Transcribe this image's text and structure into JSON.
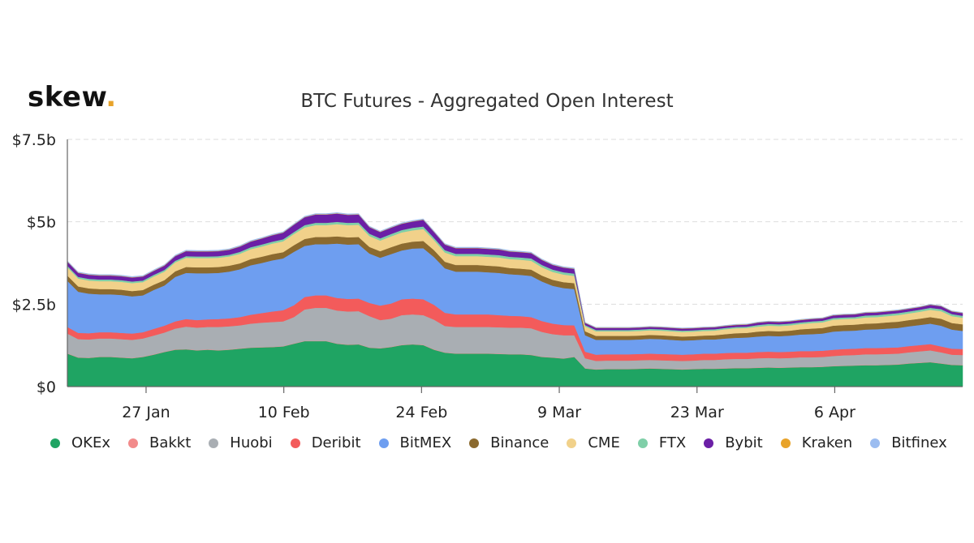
{
  "logo": {
    "text": "skew",
    "dot": "."
  },
  "chart_data": {
    "type": "area",
    "stacked": true,
    "title": "BTC Futures - Aggregated Open Interest",
    "xlabel": "",
    "ylabel": "",
    "ylim": [
      0,
      7.5
    ],
    "y_ticks": [
      0,
      2.5,
      5,
      7.5
    ],
    "y_tick_labels": [
      "$0",
      "$2.5b",
      "$5b",
      "$7.5b"
    ],
    "x_tick_labels": [
      "27 Jan",
      "10 Feb",
      "24 Feb",
      "9 Mar",
      "23 Mar",
      "6 Apr"
    ],
    "x_tick_days": [
      8,
      22,
      36,
      50,
      64,
      78
    ],
    "x_range_days": [
      0,
      91
    ],
    "x_start_date": "2020-01-19",
    "series": [
      {
        "name": "OKEx",
        "color": "#1fa463",
        "values": [
          1.0,
          0.88,
          0.87,
          0.9,
          0.9,
          0.88,
          0.86,
          0.9,
          0.97,
          1.05,
          1.12,
          1.13,
          1.1,
          1.12,
          1.1,
          1.12,
          1.15,
          1.18,
          1.19,
          1.2,
          1.22,
          1.3,
          1.38,
          1.38,
          1.38,
          1.3,
          1.27,
          1.28,
          1.18,
          1.16,
          1.2,
          1.26,
          1.28,
          1.26,
          1.12,
          1.03,
          1.0,
          1.0,
          1.0,
          1.0,
          0.99,
          0.98,
          0.98,
          0.96,
          0.9,
          0.88,
          0.85,
          0.9,
          0.55,
          0.52,
          0.53,
          0.53,
          0.53,
          0.54,
          0.55,
          0.54,
          0.53,
          0.52,
          0.53,
          0.54,
          0.54,
          0.55,
          0.56,
          0.56,
          0.57,
          0.58,
          0.57,
          0.58,
          0.59,
          0.59,
          0.6,
          0.62,
          0.63,
          0.64,
          0.65,
          0.65,
          0.66,
          0.67,
          0.7,
          0.72,
          0.74,
          0.7,
          0.66,
          0.65
        ]
      },
      {
        "name": "Bakkt",
        "color": "#f28b8b",
        "values": [
          0.01,
          0.01,
          0.01,
          0.01,
          0.01,
          0.01,
          0.01,
          0.01,
          0.01,
          0.01,
          0.01,
          0.01,
          0.01,
          0.01,
          0.01,
          0.01,
          0.01,
          0.01,
          0.01,
          0.01,
          0.01,
          0.01,
          0.01,
          0.01,
          0.01,
          0.01,
          0.01,
          0.01,
          0.01,
          0.01,
          0.01,
          0.01,
          0.01,
          0.01,
          0.01,
          0.01,
          0.01,
          0.01,
          0.01,
          0.01,
          0.01,
          0.01,
          0.01,
          0.01,
          0.01,
          0.01,
          0.01,
          0.01,
          0.01,
          0.01,
          0.01,
          0.01,
          0.01,
          0.01,
          0.01,
          0.01,
          0.01,
          0.01,
          0.01,
          0.01,
          0.01,
          0.01,
          0.01,
          0.01,
          0.01,
          0.01,
          0.01,
          0.01,
          0.01,
          0.01,
          0.01,
          0.01,
          0.01,
          0.01,
          0.01,
          0.01,
          0.01,
          0.01,
          0.01,
          0.01,
          0.01,
          0.01,
          0.01,
          0.01
        ]
      },
      {
        "name": "Huobi",
        "color": "#a9aeb3",
        "values": [
          0.6,
          0.55,
          0.55,
          0.55,
          0.55,
          0.55,
          0.55,
          0.55,
          0.57,
          0.58,
          0.63,
          0.68,
          0.68,
          0.68,
          0.7,
          0.7,
          0.7,
          0.72,
          0.74,
          0.75,
          0.75,
          0.8,
          0.95,
          1.0,
          1.0,
          1.0,
          1.0,
          1.0,
          0.95,
          0.85,
          0.85,
          0.9,
          0.9,
          0.9,
          0.9,
          0.8,
          0.8,
          0.8,
          0.8,
          0.8,
          0.8,
          0.8,
          0.8,
          0.8,
          0.75,
          0.7,
          0.7,
          0.65,
          0.3,
          0.25,
          0.25,
          0.25,
          0.25,
          0.25,
          0.25,
          0.25,
          0.25,
          0.25,
          0.25,
          0.26,
          0.26,
          0.27,
          0.27,
          0.27,
          0.28,
          0.28,
          0.28,
          0.28,
          0.29,
          0.29,
          0.29,
          0.3,
          0.31,
          0.31,
          0.32,
          0.32,
          0.32,
          0.32,
          0.33,
          0.34,
          0.35,
          0.33,
          0.3,
          0.3
        ]
      },
      {
        "name": "Deribit",
        "color": "#f35b5b",
        "values": [
          0.2,
          0.19,
          0.19,
          0.19,
          0.19,
          0.19,
          0.19,
          0.19,
          0.2,
          0.21,
          0.22,
          0.23,
          0.23,
          0.23,
          0.24,
          0.24,
          0.25,
          0.27,
          0.29,
          0.32,
          0.34,
          0.36,
          0.38,
          0.38,
          0.38,
          0.38,
          0.38,
          0.38,
          0.4,
          0.44,
          0.46,
          0.48,
          0.48,
          0.48,
          0.45,
          0.4,
          0.38,
          0.38,
          0.38,
          0.38,
          0.37,
          0.36,
          0.35,
          0.34,
          0.33,
          0.32,
          0.31,
          0.3,
          0.2,
          0.19,
          0.19,
          0.19,
          0.19,
          0.19,
          0.19,
          0.19,
          0.19,
          0.19,
          0.19,
          0.19,
          0.19,
          0.19,
          0.19,
          0.19,
          0.19,
          0.19,
          0.19,
          0.19,
          0.19,
          0.19,
          0.19,
          0.19,
          0.19,
          0.19,
          0.19,
          0.19,
          0.19,
          0.19,
          0.19,
          0.19,
          0.19,
          0.18,
          0.18,
          0.18
        ]
      },
      {
        "name": "BitMEX",
        "color": "#6e9ef0",
        "values": [
          1.4,
          1.25,
          1.2,
          1.15,
          1.15,
          1.15,
          1.13,
          1.12,
          1.18,
          1.22,
          1.35,
          1.4,
          1.42,
          1.4,
          1.4,
          1.42,
          1.45,
          1.5,
          1.52,
          1.55,
          1.57,
          1.62,
          1.55,
          1.55,
          1.55,
          1.65,
          1.65,
          1.65,
          1.5,
          1.45,
          1.5,
          1.48,
          1.52,
          1.55,
          1.45,
          1.35,
          1.3,
          1.3,
          1.3,
          1.28,
          1.28,
          1.26,
          1.25,
          1.25,
          1.2,
          1.15,
          1.12,
          1.1,
          0.5,
          0.45,
          0.44,
          0.44,
          0.44,
          0.44,
          0.45,
          0.45,
          0.44,
          0.43,
          0.43,
          0.43,
          0.43,
          0.44,
          0.45,
          0.46,
          0.47,
          0.48,
          0.48,
          0.49,
          0.5,
          0.51,
          0.52,
          0.55,
          0.55,
          0.55,
          0.56,
          0.57,
          0.58,
          0.59,
          0.6,
          0.61,
          0.62,
          0.63,
          0.58,
          0.55
        ]
      },
      {
        "name": "Binance",
        "color": "#8b6a2f",
        "values": [
          0.16,
          0.16,
          0.16,
          0.16,
          0.16,
          0.16,
          0.16,
          0.16,
          0.16,
          0.16,
          0.17,
          0.18,
          0.18,
          0.18,
          0.18,
          0.18,
          0.18,
          0.19,
          0.19,
          0.19,
          0.19,
          0.2,
          0.21,
          0.22,
          0.22,
          0.22,
          0.22,
          0.22,
          0.2,
          0.2,
          0.21,
          0.21,
          0.21,
          0.22,
          0.21,
          0.2,
          0.2,
          0.2,
          0.2,
          0.2,
          0.2,
          0.19,
          0.19,
          0.19,
          0.18,
          0.18,
          0.18,
          0.18,
          0.12,
          0.12,
          0.12,
          0.12,
          0.12,
          0.12,
          0.12,
          0.12,
          0.12,
          0.12,
          0.12,
          0.12,
          0.13,
          0.13,
          0.14,
          0.14,
          0.15,
          0.15,
          0.15,
          0.15,
          0.16,
          0.17,
          0.17,
          0.18,
          0.18,
          0.18,
          0.18,
          0.18,
          0.19,
          0.19,
          0.19,
          0.19,
          0.2,
          0.21,
          0.2,
          0.2
        ]
      },
      {
        "name": "CME",
        "color": "#f1d18a",
        "values": [
          0.25,
          0.24,
          0.24,
          0.24,
          0.24,
          0.24,
          0.24,
          0.24,
          0.25,
          0.26,
          0.27,
          0.28,
          0.28,
          0.28,
          0.28,
          0.28,
          0.29,
          0.3,
          0.31,
          0.32,
          0.33,
          0.34,
          0.35,
          0.36,
          0.36,
          0.37,
          0.37,
          0.37,
          0.33,
          0.32,
          0.33,
          0.34,
          0.34,
          0.36,
          0.3,
          0.28,
          0.27,
          0.27,
          0.27,
          0.27,
          0.27,
          0.27,
          0.27,
          0.27,
          0.25,
          0.24,
          0.23,
          0.22,
          0.15,
          0.14,
          0.14,
          0.14,
          0.14,
          0.14,
          0.14,
          0.14,
          0.14,
          0.14,
          0.14,
          0.14,
          0.14,
          0.15,
          0.15,
          0.15,
          0.15,
          0.16,
          0.16,
          0.16,
          0.16,
          0.17,
          0.17,
          0.18,
          0.18,
          0.18,
          0.19,
          0.19,
          0.19,
          0.2,
          0.2,
          0.21,
          0.22,
          0.23,
          0.21,
          0.2
        ]
      },
      {
        "name": "FTX",
        "color": "#7fcfa8",
        "values": [
          0.05,
          0.05,
          0.05,
          0.05,
          0.05,
          0.05,
          0.05,
          0.05,
          0.05,
          0.05,
          0.05,
          0.05,
          0.05,
          0.05,
          0.05,
          0.05,
          0.06,
          0.06,
          0.06,
          0.06,
          0.06,
          0.06,
          0.07,
          0.07,
          0.07,
          0.07,
          0.07,
          0.07,
          0.07,
          0.07,
          0.07,
          0.07,
          0.08,
          0.08,
          0.07,
          0.07,
          0.07,
          0.07,
          0.07,
          0.07,
          0.07,
          0.07,
          0.07,
          0.07,
          0.07,
          0.07,
          0.07,
          0.07,
          0.04,
          0.04,
          0.04,
          0.04,
          0.04,
          0.04,
          0.04,
          0.04,
          0.04,
          0.04,
          0.04,
          0.04,
          0.04,
          0.04,
          0.04,
          0.04,
          0.05,
          0.05,
          0.05,
          0.05,
          0.05,
          0.05,
          0.05,
          0.05,
          0.05,
          0.05,
          0.06,
          0.06,
          0.06,
          0.06,
          0.06,
          0.06,
          0.06,
          0.06,
          0.06,
          0.06
        ]
      },
      {
        "name": "Bybit",
        "color": "#6b1fa6",
        "values": [
          0.12,
          0.12,
          0.12,
          0.12,
          0.12,
          0.12,
          0.12,
          0.12,
          0.12,
          0.13,
          0.14,
          0.15,
          0.15,
          0.15,
          0.15,
          0.15,
          0.16,
          0.17,
          0.18,
          0.19,
          0.2,
          0.22,
          0.24,
          0.25,
          0.25,
          0.25,
          0.24,
          0.24,
          0.2,
          0.19,
          0.19,
          0.19,
          0.19,
          0.2,
          0.18,
          0.17,
          0.17,
          0.17,
          0.17,
          0.17,
          0.17,
          0.16,
          0.16,
          0.16,
          0.15,
          0.14,
          0.14,
          0.14,
          0.06,
          0.06,
          0.06,
          0.06,
          0.06,
          0.06,
          0.06,
          0.06,
          0.06,
          0.06,
          0.06,
          0.06,
          0.06,
          0.06,
          0.06,
          0.06,
          0.07,
          0.07,
          0.07,
          0.07,
          0.07,
          0.07,
          0.07,
          0.08,
          0.08,
          0.08,
          0.08,
          0.08,
          0.08,
          0.08,
          0.08,
          0.08,
          0.09,
          0.09,
          0.08,
          0.08
        ]
      },
      {
        "name": "Kraken",
        "color": "#e8a32a",
        "values": [
          0.01,
          0.01,
          0.01,
          0.01,
          0.01,
          0.01,
          0.01,
          0.01,
          0.01,
          0.01,
          0.01,
          0.01,
          0.01,
          0.01,
          0.01,
          0.01,
          0.01,
          0.01,
          0.01,
          0.01,
          0.01,
          0.01,
          0.01,
          0.01,
          0.01,
          0.01,
          0.01,
          0.01,
          0.01,
          0.01,
          0.01,
          0.01,
          0.01,
          0.01,
          0.01,
          0.01,
          0.01,
          0.01,
          0.01,
          0.01,
          0.01,
          0.01,
          0.01,
          0.01,
          0.01,
          0.01,
          0.01,
          0.01,
          0.01,
          0.01,
          0.01,
          0.01,
          0.01,
          0.01,
          0.01,
          0.01,
          0.01,
          0.01,
          0.01,
          0.01,
          0.01,
          0.01,
          0.01,
          0.01,
          0.01,
          0.01,
          0.01,
          0.01,
          0.01,
          0.01,
          0.01,
          0.01,
          0.01,
          0.01,
          0.01,
          0.01,
          0.01,
          0.01,
          0.01,
          0.01,
          0.01,
          0.01,
          0.01,
          0.01
        ]
      },
      {
        "name": "Bitfinex",
        "color": "#9bbcf0",
        "values": [
          0.02,
          0.02,
          0.02,
          0.02,
          0.02,
          0.02,
          0.02,
          0.02,
          0.02,
          0.02,
          0.02,
          0.02,
          0.02,
          0.02,
          0.02,
          0.02,
          0.02,
          0.02,
          0.02,
          0.02,
          0.02,
          0.02,
          0.02,
          0.02,
          0.02,
          0.02,
          0.02,
          0.02,
          0.02,
          0.02,
          0.02,
          0.02,
          0.02,
          0.02,
          0.02,
          0.02,
          0.02,
          0.02,
          0.02,
          0.02,
          0.02,
          0.02,
          0.02,
          0.02,
          0.02,
          0.02,
          0.02,
          0.02,
          0.01,
          0.01,
          0.01,
          0.01,
          0.01,
          0.01,
          0.01,
          0.01,
          0.01,
          0.01,
          0.01,
          0.01,
          0.01,
          0.01,
          0.01,
          0.01,
          0.01,
          0.01,
          0.01,
          0.01,
          0.01,
          0.01,
          0.01,
          0.01,
          0.01,
          0.01,
          0.01,
          0.01,
          0.01,
          0.01,
          0.01,
          0.01,
          0.01,
          0.01,
          0.01,
          0.01
        ]
      }
    ]
  }
}
